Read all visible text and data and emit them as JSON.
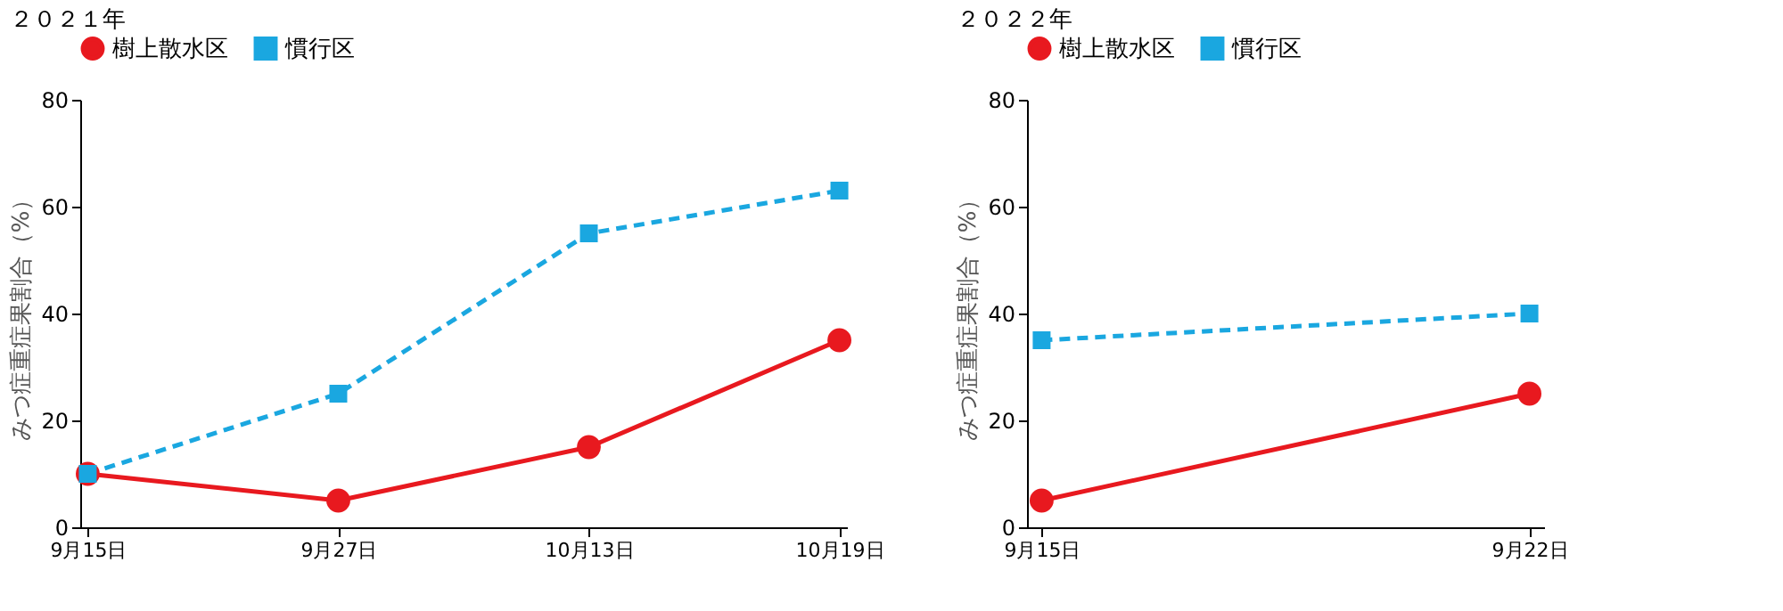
{
  "chart_data": [
    {
      "type": "line",
      "title": "２０２１年",
      "ylabel": "みつ症重症果割合（%）",
      "categories": [
        "9月15日",
        "9月27日",
        "10月13日",
        "10月19日"
      ],
      "ylim": [
        0,
        80
      ],
      "yticks": [
        0,
        20,
        40,
        60,
        80
      ],
      "grid": false,
      "legend": "top",
      "series": [
        {
          "name": "樹上散水区",
          "color": "#e8191f",
          "values": [
            10,
            5,
            15,
            35
          ],
          "marker": "circle",
          "line_style": "solid"
        },
        {
          "name": "慣行区",
          "color": "#1aa7e0",
          "values": [
            10,
            25,
            55,
            63
          ],
          "marker": "square",
          "line_style": "dashed"
        }
      ]
    },
    {
      "type": "line",
      "title": "２０２２年",
      "ylabel": "みつ症重症果割合（%）",
      "categories": [
        "9月15日",
        "9月22日"
      ],
      "ylim": [
        0,
        80
      ],
      "yticks": [
        0,
        20,
        40,
        60,
        80
      ],
      "grid": false,
      "legend": "top",
      "series": [
        {
          "name": "樹上散水区",
          "color": "#e8191f",
          "values": [
            5,
            25
          ],
          "marker": "circle",
          "line_style": "solid"
        },
        {
          "name": "慣行区",
          "color": "#1aa7e0",
          "values": [
            35,
            40
          ],
          "marker": "square",
          "line_style": "dashed"
        }
      ]
    }
  ]
}
